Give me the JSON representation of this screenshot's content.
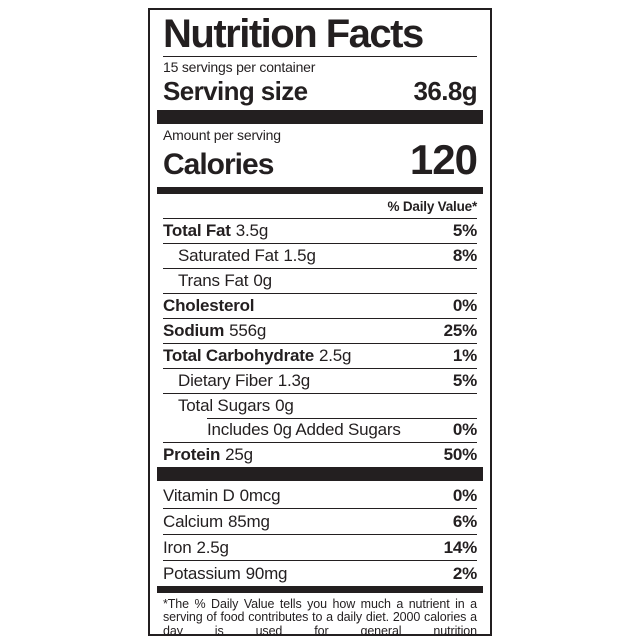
{
  "label": {
    "title": "Nutrition Facts",
    "servings_per_container": "15 servings per container",
    "serving_size_label": "Serving size",
    "serving_size_value": "36.8g",
    "amount_per_serving": "Amount per serving",
    "calories_label": "Calories",
    "calories_value": "120",
    "daily_value_header": "% Daily Value*",
    "nutrient_rows": [
      {
        "name": "Total Fat",
        "amount": "3.5g",
        "dv": "5%"
      },
      {
        "name": "Saturated Fat",
        "amount": "1.5g",
        "dv": "8%"
      },
      {
        "name": "Trans Fat",
        "amount": "0g",
        "dv": ""
      },
      {
        "name": "Cholesterol",
        "amount": "",
        "dv": "0%"
      },
      {
        "name": "Sodium",
        "amount": "556g",
        "dv": "25%"
      },
      {
        "name": "Total Carbohydrate",
        "amount": "2.5g",
        "dv": "1%"
      },
      {
        "name": "Dietary Fiber",
        "amount": "1.3g",
        "dv": "5%"
      },
      {
        "name": "Total Sugars",
        "amount": "0g",
        "dv": ""
      },
      {
        "name": "Includes 0g Added Sugars",
        "amount": "",
        "dv": "0%"
      },
      {
        "name": "Protein",
        "amount": "25g",
        "dv": "50%"
      }
    ],
    "vitamin_rows": [
      {
        "name": "Vitamin D",
        "amount": "0mcg",
        "dv": "0%"
      },
      {
        "name": "Calcium",
        "amount": "85mg",
        "dv": "6%"
      },
      {
        "name": "Iron",
        "amount": "2.5g",
        "dv": "14%"
      },
      {
        "name": "Potassium",
        "amount": "90mg",
        "dv": "2%"
      }
    ],
    "footnote": "*The % Daily Value tells you how much a nutrient in a serving of food contributes to a daily diet. 2000 calories a day is used for general nutrition",
    "colors": {
      "ink": "#231f20",
      "background": "#ffffff"
    }
  }
}
